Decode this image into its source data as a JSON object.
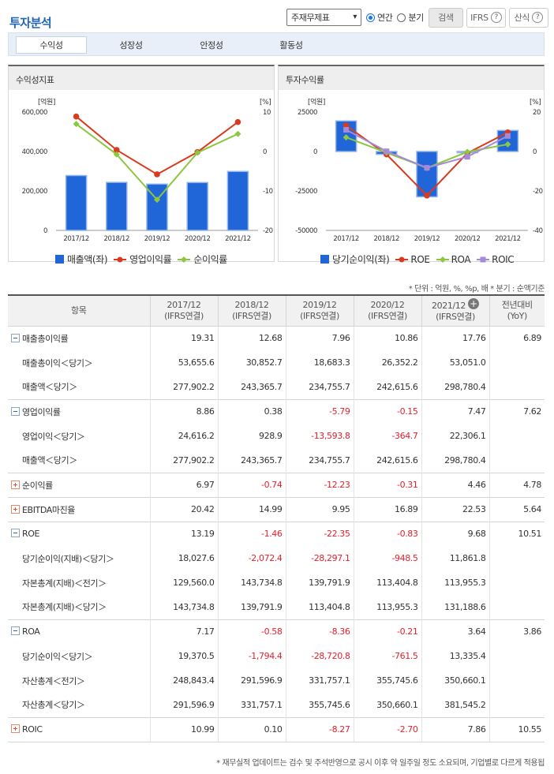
{
  "header": {
    "title": "투자분석",
    "select_value": "주재무제표",
    "radio_annual": "연간",
    "radio_quarter": "분기",
    "search_btn": "검색",
    "ifrs_btn": "IFRS",
    "formula_btn": "산식",
    "help_glyph": "?"
  },
  "tabs": [
    "수익성",
    "성장성",
    "안정성",
    "활동성"
  ],
  "colors": {
    "bar": "#2166d9",
    "line_red": "#d93b1e",
    "line_green": "#8dc63f",
    "line_purple": "#a48ad8"
  },
  "chart_data": [
    {
      "type": "bar+line",
      "title": "수익성지표",
      "left_unit": "[억원]",
      "right_unit": "[%]",
      "categories": [
        "2017/12",
        "2018/12",
        "2019/12",
        "2020/12",
        "2021/12"
      ],
      "left_ticks": [
        "600,000",
        "400,000",
        "200,000",
        "0"
      ],
      "right_ticks": [
        "10",
        "0",
        "-10",
        "-20"
      ],
      "ylim_left": [
        0,
        600000
      ],
      "ylim_right": [
        -20,
        10
      ],
      "bar": {
        "name": "매출액(좌)",
        "values": [
          277902.2,
          243365.7,
          234755.7,
          242615.6,
          298780.4
        ]
      },
      "lines": [
        {
          "name": "영업이익률",
          "values": [
            8.86,
            0.38,
            -5.79,
            -0.15,
            7.47
          ]
        },
        {
          "name": "순이익률",
          "values": [
            6.97,
            -0.74,
            -12.23,
            -0.31,
            4.46
          ]
        }
      ]
    },
    {
      "type": "bar+line",
      "title": "투자수익률",
      "left_unit": "[억원]",
      "right_unit": "[%]",
      "categories": [
        "2017/12",
        "2018/12",
        "2019/12",
        "2020/12",
        "2021/12"
      ],
      "left_ticks": [
        "25000",
        "0",
        "-25000",
        "-50000"
      ],
      "right_ticks": [
        "20",
        "0",
        "-20",
        "-40"
      ],
      "ylim_left": [
        -50000,
        25000
      ],
      "ylim_right": [
        -40,
        20
      ],
      "bar": {
        "name": "당기순이익(좌)",
        "values": [
          19370.5,
          -1794.4,
          -28720.8,
          -761.5,
          13335.4
        ]
      },
      "lines": [
        {
          "name": "ROE",
          "values": [
            13.19,
            -1.46,
            -22.35,
            -0.83,
            9.68
          ]
        },
        {
          "name": "ROA",
          "values": [
            7.17,
            -0.58,
            -8.36,
            -0.21,
            3.64
          ]
        },
        {
          "name": "ROIC",
          "values": [
            10.99,
            0.1,
            -8.27,
            -2.7,
            7.86
          ]
        }
      ]
    }
  ],
  "unit_note": "* 단위 : 억원, %, %p, 배   * 분기 : 순액기준",
  "table": {
    "header_item": "항목",
    "columns": [
      {
        "year": "2017/12",
        "basis": "(IFRS연결)"
      },
      {
        "year": "2018/12",
        "basis": "(IFRS연결)"
      },
      {
        "year": "2019/12",
        "basis": "(IFRS연결)"
      },
      {
        "year": "2020/12",
        "basis": "(IFRS연결)"
      },
      {
        "year": "2021/12",
        "basis": "(IFRS연결)"
      }
    ],
    "yoy_label_1": "전년대비",
    "yoy_label_2": "(YoY)",
    "rows": [
      {
        "type": "main",
        "toggle": "minus",
        "label": "매출총이익률",
        "values": [
          "19.31",
          "12.68",
          "7.96",
          "10.86",
          "17.76"
        ],
        "yoy": "6.89"
      },
      {
        "type": "sub",
        "label": "매출총이익＜당기＞",
        "values": [
          "53,655.6",
          "30,852.7",
          "18,683.3",
          "26,352.2",
          "53,051.0"
        ],
        "yoy": ""
      },
      {
        "type": "sub",
        "label": "매출액＜당기＞",
        "values": [
          "277,902.2",
          "243,365.7",
          "234,755.7",
          "242,615.6",
          "298,780.4"
        ],
        "yoy": ""
      },
      {
        "type": "main",
        "toggle": "minus",
        "label": "영업이익률",
        "values": [
          "8.86",
          "0.38",
          "-5.79",
          "-0.15",
          "7.47"
        ],
        "yoy": "7.62"
      },
      {
        "type": "sub",
        "label": "영업이익＜당기＞",
        "values": [
          "24,616.2",
          "928.9",
          "-13,593.8",
          "-364.7",
          "22,306.1"
        ],
        "yoy": ""
      },
      {
        "type": "sub",
        "label": "매출액＜당기＞",
        "values": [
          "277,902.2",
          "243,365.7",
          "234,755.7",
          "242,615.6",
          "298,780.4"
        ],
        "yoy": ""
      },
      {
        "type": "main",
        "toggle": "plus",
        "label": "순이익률",
        "values": [
          "6.97",
          "-0.74",
          "-12.23",
          "-0.31",
          "4.46"
        ],
        "yoy": "4.78"
      },
      {
        "type": "main",
        "toggle": "plus",
        "label": "EBITDA마진율",
        "values": [
          "20.42",
          "14.99",
          "9.95",
          "16.89",
          "22.53"
        ],
        "yoy": "5.64"
      },
      {
        "type": "main",
        "toggle": "minus",
        "label": "ROE",
        "values": [
          "13.19",
          "-1.46",
          "-22.35",
          "-0.83",
          "9.68"
        ],
        "yoy": "10.51"
      },
      {
        "type": "sub",
        "label": "당기순이익(지배)＜당기＞",
        "values": [
          "18,027.6",
          "-2,072.4",
          "-28,297.1",
          "-948.5",
          "11,861.8"
        ],
        "yoy": ""
      },
      {
        "type": "sub",
        "label": "자본총계(지배)＜전기＞",
        "values": [
          "129,560.0",
          "143,734.8",
          "139,791.9",
          "113,404.8",
          "113,955.3"
        ],
        "yoy": ""
      },
      {
        "type": "sub",
        "label": "자본총계(지배)＜당기＞",
        "values": [
          "143,734.8",
          "139,791.9",
          "113,404.8",
          "113,955.3",
          "131,188.6"
        ],
        "yoy": ""
      },
      {
        "type": "main",
        "toggle": "minus",
        "label": "ROA",
        "values": [
          "7.17",
          "-0.58",
          "-8.36",
          "-0.21",
          "3.64"
        ],
        "yoy": "3.86"
      },
      {
        "type": "sub",
        "label": "당기순이익＜당기＞",
        "values": [
          "19,370.5",
          "-1,794.4",
          "-28,720.8",
          "-761.5",
          "13,335.4"
        ],
        "yoy": ""
      },
      {
        "type": "sub",
        "label": "자산총계＜전기＞",
        "values": [
          "248,843.4",
          "291,596.9",
          "331,757.1",
          "355,745.6",
          "350,660.1"
        ],
        "yoy": ""
      },
      {
        "type": "sub",
        "label": "자산총계＜당기＞",
        "values": [
          "291,596.9",
          "331,757.1",
          "355,745.6",
          "350,660.1",
          "381,545.2"
        ],
        "yoy": ""
      },
      {
        "type": "main",
        "toggle": "plus",
        "label": "ROIC",
        "values": [
          "10.99",
          "0.10",
          "-8.27",
          "-2.70",
          "7.86"
        ],
        "yoy": "10.55"
      }
    ]
  },
  "footnote": "* 재무실적 업데이트는 검수 및 주석반영으로 공시 이후 약 일주일 정도 소요되며, 기업별로 다르게 적용됩"
}
